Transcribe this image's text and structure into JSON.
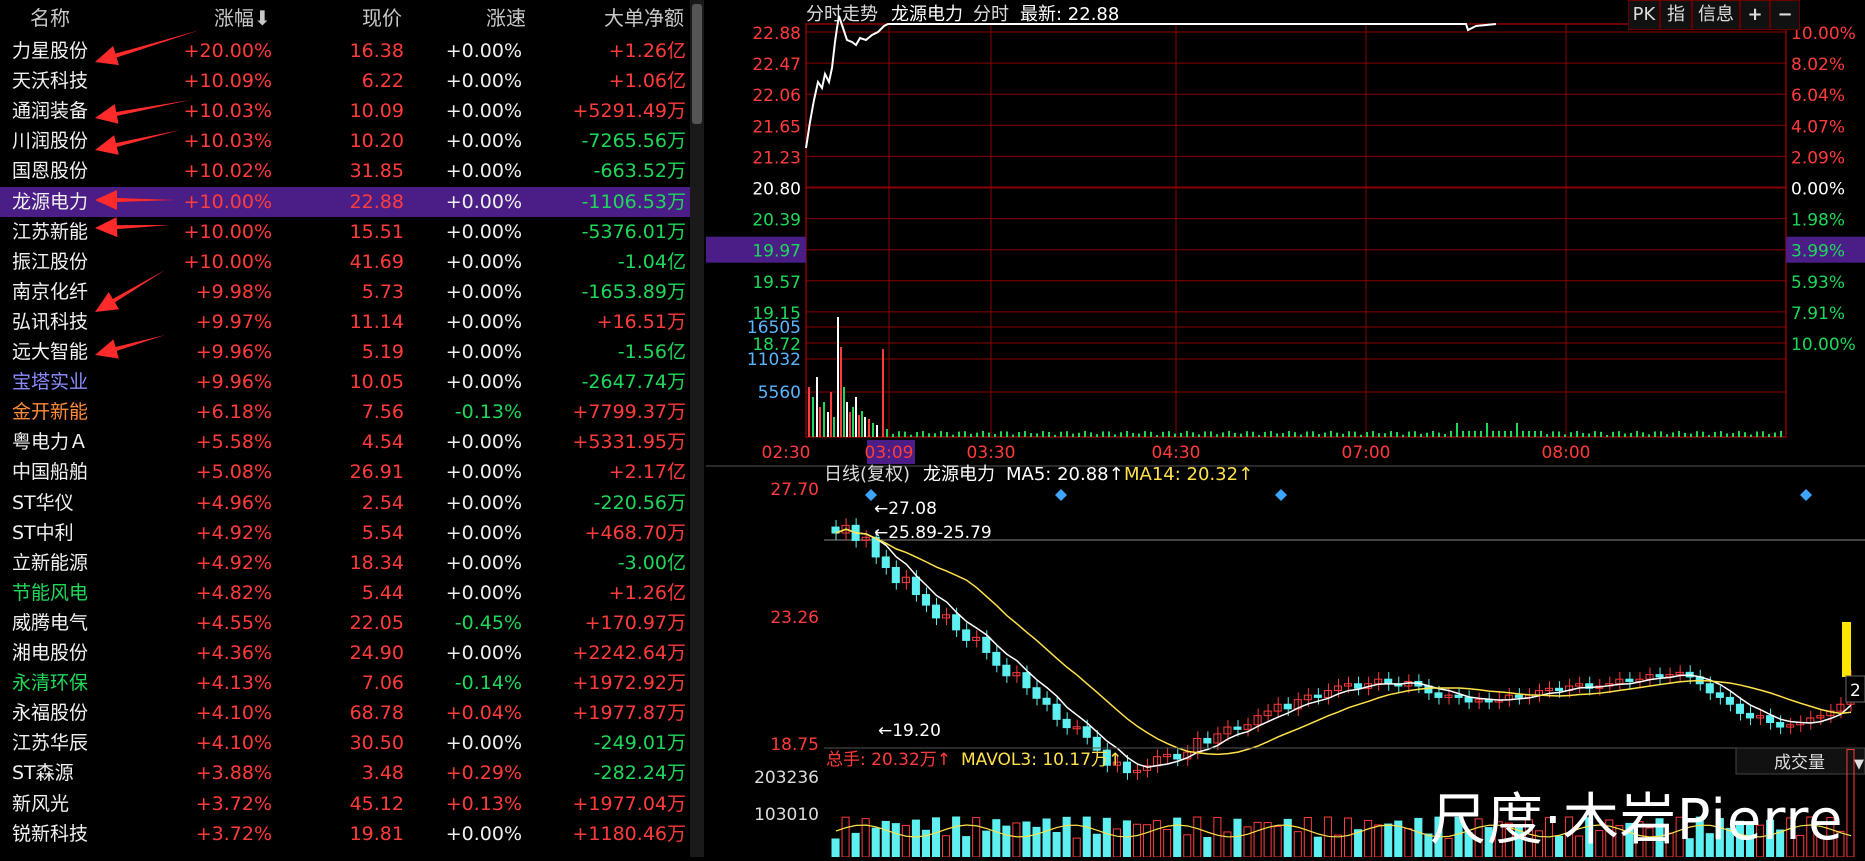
{
  "columns": [
    "名称",
    "涨幅⬇",
    "现价",
    "涨速",
    "大单净额"
  ],
  "stocks": [
    {
      "name": "力星股份",
      "chg": "+20.00%",
      "price": "16.38",
      "speed": "+0.00%",
      "net": "+1.26亿",
      "name_color": "#f0f0f0",
      "speed_color": "#f0f0f0",
      "net_color": "#ff3b3b"
    },
    {
      "name": "天沃科技",
      "chg": "+10.09%",
      "price": "6.22",
      "speed": "+0.00%",
      "net": "+1.06亿",
      "name_color": "#f0f0f0",
      "speed_color": "#f0f0f0",
      "net_color": "#ff3b3b"
    },
    {
      "name": "通润装备",
      "chg": "+10.03%",
      "price": "10.09",
      "speed": "+0.00%",
      "net": "+5291.49万",
      "name_color": "#f0f0f0",
      "speed_color": "#f0f0f0",
      "net_color": "#ff3b3b"
    },
    {
      "name": "川润股份",
      "chg": "+10.03%",
      "price": "10.20",
      "speed": "+0.00%",
      "net": "-7265.56万",
      "name_color": "#f0f0f0",
      "speed_color": "#f0f0f0",
      "net_color": "#1ed85a"
    },
    {
      "name": "国恩股份",
      "chg": "+10.02%",
      "price": "31.85",
      "speed": "+0.00%",
      "net": "-663.52万",
      "name_color": "#f0f0f0",
      "speed_color": "#f0f0f0",
      "net_color": "#1ed85a"
    },
    {
      "name": "龙源电力",
      "chg": "+10.00%",
      "price": "22.88",
      "speed": "+0.00%",
      "net": "-1106.53万",
      "name_color": "#f0f0f0",
      "speed_color": "#f0f0f0",
      "net_color": "#1ed85a",
      "selected": true
    },
    {
      "name": "江苏新能",
      "chg": "+10.00%",
      "price": "15.51",
      "speed": "+0.00%",
      "net": "-5376.01万",
      "name_color": "#f0f0f0",
      "speed_color": "#f0f0f0",
      "net_color": "#1ed85a"
    },
    {
      "name": "振江股份",
      "chg": "+10.00%",
      "price": "41.69",
      "speed": "+0.00%",
      "net": "-1.04亿",
      "name_color": "#f0f0f0",
      "speed_color": "#f0f0f0",
      "net_color": "#1ed85a"
    },
    {
      "name": "南京化纤",
      "chg": "+9.98%",
      "price": "5.73",
      "speed": "+0.00%",
      "net": "-1653.89万",
      "name_color": "#f0f0f0",
      "speed_color": "#f0f0f0",
      "net_color": "#1ed85a"
    },
    {
      "name": "弘讯科技",
      "chg": "+9.97%",
      "price": "11.14",
      "speed": "+0.00%",
      "net": "+16.51万",
      "name_color": "#f0f0f0",
      "speed_color": "#f0f0f0",
      "net_color": "#ff3b3b"
    },
    {
      "name": "远大智能",
      "chg": "+9.96%",
      "price": "5.19",
      "speed": "+0.00%",
      "net": "-1.56亿",
      "name_color": "#f0f0f0",
      "speed_color": "#f0f0f0",
      "net_color": "#1ed85a"
    },
    {
      "name": "宝塔实业",
      "chg": "+9.96%",
      "price": "10.05",
      "speed": "+0.00%",
      "net": "-2647.74万",
      "name_color": "#8c8cff",
      "speed_color": "#f0f0f0",
      "net_color": "#1ed85a"
    },
    {
      "name": "金开新能",
      "chg": "+6.18%",
      "price": "7.56",
      "speed": "-0.13%",
      "net": "+7799.37万",
      "name_color": "#ff8a3a",
      "speed_color": "#1ed85a",
      "net_color": "#ff3b3b"
    },
    {
      "name": "粤电力Ａ",
      "chg": "+5.58%",
      "price": "4.54",
      "speed": "+0.00%",
      "net": "+5331.95万",
      "name_color": "#f0f0f0",
      "speed_color": "#f0f0f0",
      "net_color": "#ff3b3b"
    },
    {
      "name": "中国船舶",
      "chg": "+5.08%",
      "price": "26.91",
      "speed": "+0.00%",
      "net": "+2.17亿",
      "name_color": "#f0f0f0",
      "speed_color": "#f0f0f0",
      "net_color": "#ff3b3b"
    },
    {
      "name": "ST华仪",
      "chg": "+4.96%",
      "price": "2.54",
      "speed": "+0.00%",
      "net": "-220.56万",
      "name_color": "#f0f0f0",
      "speed_color": "#f0f0f0",
      "net_color": "#1ed85a"
    },
    {
      "name": "ST中利",
      "chg": "+4.92%",
      "price": "5.54",
      "speed": "+0.00%",
      "net": "+468.70万",
      "name_color": "#f0f0f0",
      "speed_color": "#f0f0f0",
      "net_color": "#ff3b3b"
    },
    {
      "name": "立新能源",
      "chg": "+4.92%",
      "price": "18.34",
      "speed": "+0.00%",
      "net": "-3.00亿",
      "name_color": "#f0f0f0",
      "speed_color": "#f0f0f0",
      "net_color": "#1ed85a"
    },
    {
      "name": "节能风电",
      "chg": "+4.82%",
      "price": "5.44",
      "speed": "+0.00%",
      "net": "+1.26亿",
      "name_color": "#1ed85a",
      "speed_color": "#f0f0f0",
      "net_color": "#ff3b3b"
    },
    {
      "name": "威腾电气",
      "chg": "+4.55%",
      "price": "22.05",
      "speed": "-0.45%",
      "net": "+170.97万",
      "name_color": "#f0f0f0",
      "speed_color": "#1ed85a",
      "net_color": "#ff3b3b"
    },
    {
      "name": "湘电股份",
      "chg": "+4.36%",
      "price": "24.90",
      "speed": "+0.00%",
      "net": "+2242.64万",
      "name_color": "#f0f0f0",
      "speed_color": "#f0f0f0",
      "net_color": "#ff3b3b"
    },
    {
      "name": "永清环保",
      "chg": "+4.13%",
      "price": "7.06",
      "speed": "-0.14%",
      "net": "+1972.92万",
      "name_color": "#1ed85a",
      "speed_color": "#1ed85a",
      "net_color": "#ff3b3b"
    },
    {
      "name": "永福股份",
      "chg": "+4.10%",
      "price": "68.78",
      "speed": "+0.04%",
      "net": "+1977.87万",
      "name_color": "#f0f0f0",
      "speed_color": "#ff3b3b",
      "net_color": "#ff3b3b"
    },
    {
      "name": "江苏华辰",
      "chg": "+4.10%",
      "price": "30.50",
      "speed": "+0.00%",
      "net": "-249.01万",
      "name_color": "#f0f0f0",
      "speed_color": "#f0f0f0",
      "net_color": "#1ed85a"
    },
    {
      "name": "ST森源",
      "chg": "+3.88%",
      "price": "3.48",
      "speed": "+0.29%",
      "net": "-282.24万",
      "name_color": "#f0f0f0",
      "speed_color": "#ff3b3b",
      "net_color": "#1ed85a"
    },
    {
      "name": "新风光",
      "chg": "+3.72%",
      "price": "45.12",
      "speed": "+0.13%",
      "net": "+1977.04万",
      "name_color": "#f0f0f0",
      "speed_color": "#ff3b3b",
      "net_color": "#ff3b3b"
    },
    {
      "name": "锐新科技",
      "chg": "+3.72%",
      "price": "19.81",
      "speed": "+0.00%",
      "net": "+1180.46万",
      "name_color": "#f0f0f0",
      "speed_color": "#f0f0f0",
      "net_color": "#ff3b3b"
    }
  ],
  "intraday": {
    "title_left": "分时走势",
    "stock": "龙源电力",
    "mode": "分时",
    "latest": "最新: 22.88",
    "buttons": [
      "PK",
      "指",
      "信息",
      "+",
      "−"
    ],
    "price_ticks": [
      "22.88",
      "22.47",
      "22.06",
      "21.65",
      "21.23",
      "20.80",
      "20.39",
      "19.97",
      "19.57",
      "19.15",
      "18.72"
    ],
    "pct_ticks": [
      "10.00%",
      "8.02%",
      "6.04%",
      "4.07%",
      "2.09%",
      "0.00%",
      "1.98%",
      "3.99%",
      "5.93%",
      "7.91%",
      "10.00%"
    ],
    "volume_ticks": [
      "16505",
      "11032",
      "5560"
    ],
    "time_ticks": [
      "02:30",
      "03:09",
      "03:30",
      "04:30",
      "07:00",
      "08:00"
    ]
  },
  "daily": {
    "header": "日线(复权)",
    "stock": "龙源电力",
    "ma5": "MA5: 20.88",
    "ma14": "MA14: 20.32",
    "price_ticks": [
      "27.70",
      "23.26",
      "18.75"
    ],
    "annot_high": "27.08",
    "annot_range": "25.89-25.79",
    "annot_low": "19.20",
    "annot_right": "2",
    "vol_header": "总手: 20.32万",
    "mavol": "MAVOL3: 10.17万",
    "vol_ticks": [
      "203236",
      "103010"
    ],
    "vol_button": "成交量"
  },
  "watermark": "尺度·木岩Pierre",
  "colors": {
    "up": "#ff3b3b",
    "down": "#1ed85a",
    "selected_row": "#4b1d86",
    "grid": "#8a0000"
  }
}
